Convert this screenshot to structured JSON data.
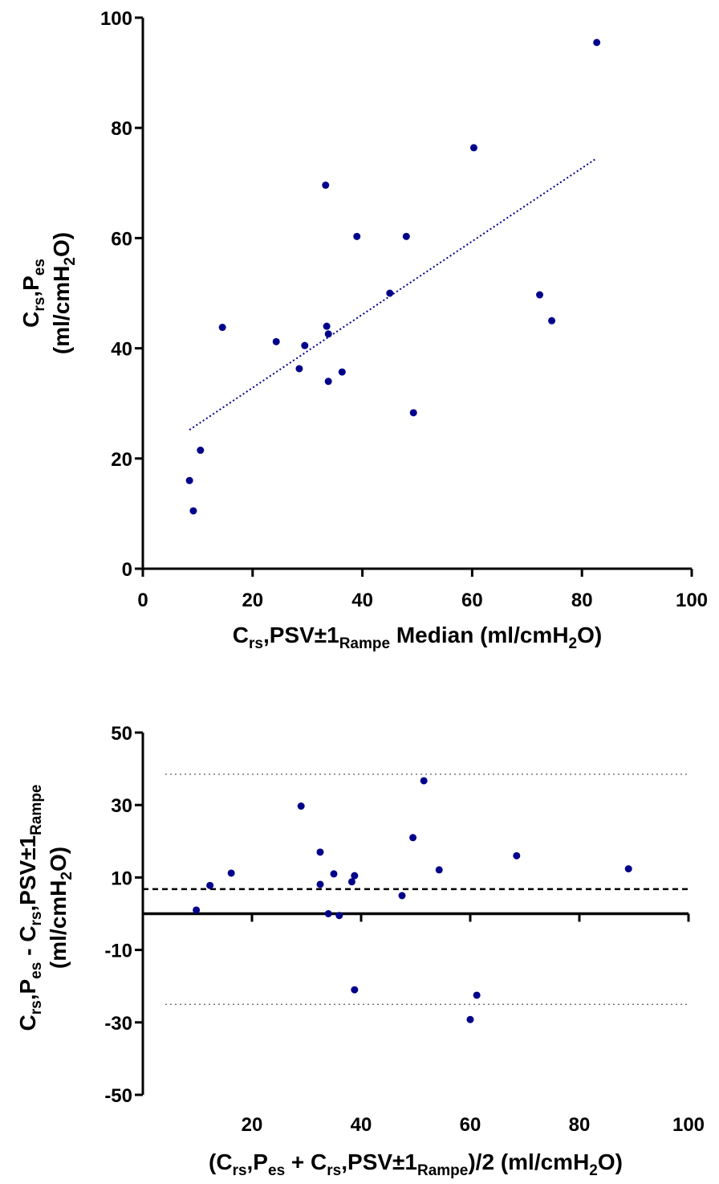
{
  "chart_data": [
    {
      "type": "scatter",
      "title": "",
      "xlabel_parts": {
        "c": "C",
        "c_sub": "rs",
        "mid": ",PSV±1",
        "ramp_sub": "Rampe",
        "tail": " Median (ml/cmH",
        "h2_sub": "2",
        "end": "O)"
      },
      "ylabel_line1_parts": {
        "c": "C",
        "c_sub": "rs",
        "mid": ",P",
        "p_sub": "es"
      },
      "ylabel_line2_parts": {
        "pre": "(ml/cmH",
        "sub": "2",
        "post": "O)"
      },
      "xlim": [
        0,
        100
      ],
      "ylim": [
        0,
        100
      ],
      "x_ticks": [
        "0",
        "20",
        "40",
        "60",
        "80",
        "100"
      ],
      "y_ticks": [
        "0",
        "20",
        "40",
        "60",
        "80",
        "100"
      ],
      "x_tick_values": [
        0,
        20,
        40,
        60,
        80,
        100
      ],
      "y_tick_values": [
        0,
        20,
        40,
        60,
        80,
        100
      ],
      "points": [
        {
          "x": 8.5,
          "y": 16
        },
        {
          "x": 9.2,
          "y": 10.5
        },
        {
          "x": 10.5,
          "y": 21.5
        },
        {
          "x": 14.5,
          "y": 43.8
        },
        {
          "x": 24.3,
          "y": 41.2
        },
        {
          "x": 28.5,
          "y": 36.3
        },
        {
          "x": 29.5,
          "y": 40.5
        },
        {
          "x": 33.3,
          "y": 69.6
        },
        {
          "x": 33.5,
          "y": 44
        },
        {
          "x": 33.8,
          "y": 42.6
        },
        {
          "x": 33.8,
          "y": 34
        },
        {
          "x": 36.3,
          "y": 35.7
        },
        {
          "x": 39,
          "y": 60.3
        },
        {
          "x": 45,
          "y": 50
        },
        {
          "x": 48,
          "y": 60.3
        },
        {
          "x": 49.3,
          "y": 28.3
        },
        {
          "x": 60.3,
          "y": 76.4
        },
        {
          "x": 72.3,
          "y": 49.7
        },
        {
          "x": 74.5,
          "y": 45
        },
        {
          "x": 82.7,
          "y": 95.5
        }
      ],
      "trend_line": {
        "x": [
          8.5,
          82.7
        ],
        "y": [
          25.2,
          74.5
        ],
        "style": "dotted",
        "color": "#00008b"
      },
      "marker_color": "#00008b"
    },
    {
      "type": "scatter",
      "title": "",
      "xlabel_parts": {
        "open": "(C",
        "c1_sub": "rs",
        "p1": ",P",
        "es_sub": "es",
        "plus": " + C",
        "c2_sub": "rs",
        "psv": ",PSV±1",
        "ramp_sub": "Rampe",
        "close": ")/2  (ml/cmH",
        "h2_sub": "2",
        "end": "O)"
      },
      "ylabel_line1_parts": {
        "c": "C",
        "c1_sub": "rs",
        "p": ",P",
        "es_sub": "es",
        "minus": " - C",
        "c2_sub": "rs",
        "psv": ",PSV±1",
        "ramp_sub": "Rampe"
      },
      "ylabel_line2_parts": {
        "pre": "(ml/cmH",
        "sub": "2",
        "post": "O)"
      },
      "xlim": [
        0,
        100
      ],
      "ylim": [
        -50,
        50
      ],
      "x_ticks": [
        "20",
        "40",
        "60",
        "80",
        "100"
      ],
      "y_ticks": [
        "-50",
        "-30",
        "-10",
        "10",
        "30",
        "50"
      ],
      "x_tick_values": [
        20,
        40,
        60,
        80,
        100
      ],
      "y_tick_values": [
        -50,
        -30,
        -10,
        10,
        30,
        50
      ],
      "points": [
        {
          "x": 9.8,
          "y": 1
        },
        {
          "x": 12.3,
          "y": 7.8
        },
        {
          "x": 16.2,
          "y": 11.2
        },
        {
          "x": 29,
          "y": 29.7
        },
        {
          "x": 32.5,
          "y": 17
        },
        {
          "x": 32.5,
          "y": 8.1
        },
        {
          "x": 34,
          "y": 0
        },
        {
          "x": 35,
          "y": 11
        },
        {
          "x": 36,
          "y": -0.5
        },
        {
          "x": 38.3,
          "y": 8.8
        },
        {
          "x": 38.8,
          "y": 10.5
        },
        {
          "x": 38.8,
          "y": -21
        },
        {
          "x": 47.5,
          "y": 5
        },
        {
          "x": 49.5,
          "y": 21
        },
        {
          "x": 51.5,
          "y": 36.7
        },
        {
          "x": 54.3,
          "y": 12.1
        },
        {
          "x": 60,
          "y": -29.2
        },
        {
          "x": 61.2,
          "y": -22.5
        },
        {
          "x": 68.5,
          "y": 16
        },
        {
          "x": 89,
          "y": 12.4
        }
      ],
      "reference_lines": [
        {
          "y": 38.5,
          "style": "dotted"
        },
        {
          "y": 6.8,
          "style": "dashed"
        },
        {
          "y": -25,
          "style": "dotted"
        },
        {
          "y": 0,
          "style": "solid"
        }
      ],
      "marker_color": "#00008b"
    }
  ]
}
